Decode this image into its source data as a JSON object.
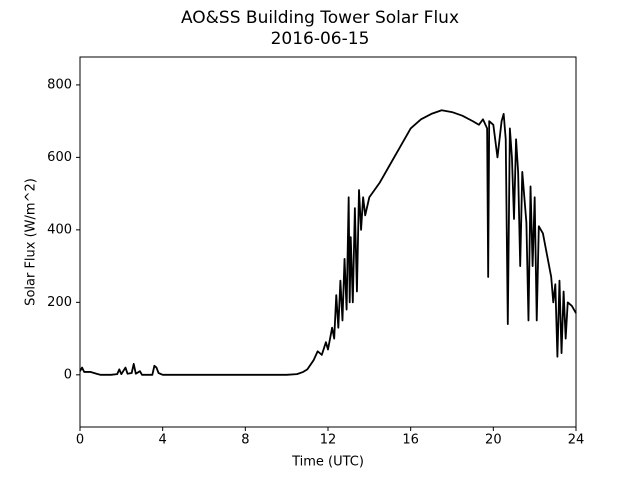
{
  "chart_data": {
    "type": "line",
    "title": "AO&SS Building Tower Solar Flux",
    "subtitle": "2016-06-15",
    "x_label": "Time (UTC)",
    "y_label": "Solar Flux (W/m^2)",
    "color": "#000000",
    "xlim": [
      0,
      24
    ],
    "xticks": [
      0,
      4,
      8,
      12,
      16,
      20,
      24
    ],
    "ylim": [
      -144,
      877
    ],
    "yticks": [
      0,
      200,
      400,
      600,
      800
    ],
    "x": [
      0,
      0.1,
      0.2,
      0.5,
      0.8,
      1,
      1.5,
      1.8,
      1.9,
      2.0,
      2.2,
      2.3,
      2.5,
      2.6,
      2.7,
      2.9,
      3.0,
      3.5,
      3.6,
      3.7,
      3.8,
      4,
      10,
      10.5,
      10.8,
      11,
      11.3,
      11.5,
      11.7,
      11.9,
      12,
      12.2,
      12.3,
      12.4,
      12.5,
      12.6,
      12.7,
      12.8,
      12.9,
      13,
      13.05,
      13.1,
      13.2,
      13.3,
      13.4,
      13.5,
      13.6,
      13.7,
      13.8,
      14,
      14.5,
      15,
      15.5,
      16,
      16.5,
      17,
      17.5,
      18,
      18.5,
      19,
      19.3,
      19.5,
      19.7,
      19.75,
      19.8,
      20,
      20.2,
      20.4,
      20.5,
      20.6,
      20.7,
      20.8,
      20.9,
      21,
      21.1,
      21.2,
      21.3,
      21.4,
      21.6,
      21.7,
      21.8,
      21.9,
      22,
      22.1,
      22.2,
      22.4,
      22.6,
      22.8,
      22.9,
      23,
      23.1,
      23.2,
      23.3,
      23.4,
      23.5,
      23.6,
      23.8,
      24
    ],
    "values": [
      10,
      20,
      8,
      8,
      3,
      0,
      0,
      2,
      15,
      2,
      20,
      3,
      5,
      30,
      3,
      10,
      0,
      0,
      25,
      20,
      5,
      0,
      0,
      2,
      8,
      15,
      40,
      65,
      55,
      90,
      70,
      130,
      100,
      220,
      130,
      260,
      150,
      320,
      180,
      490,
      200,
      380,
      200,
      460,
      230,
      510,
      400,
      490,
      440,
      490,
      530,
      580,
      630,
      680,
      705,
      720,
      730,
      725,
      715,
      700,
      690,
      705,
      680,
      270,
      700,
      690,
      600,
      700,
      720,
      650,
      140,
      680,
      600,
      430,
      650,
      560,
      300,
      560,
      420,
      150,
      520,
      300,
      490,
      150,
      410,
      390,
      330,
      270,
      200,
      250,
      50,
      260,
      60,
      230,
      100,
      200,
      190,
      170
    ]
  }
}
